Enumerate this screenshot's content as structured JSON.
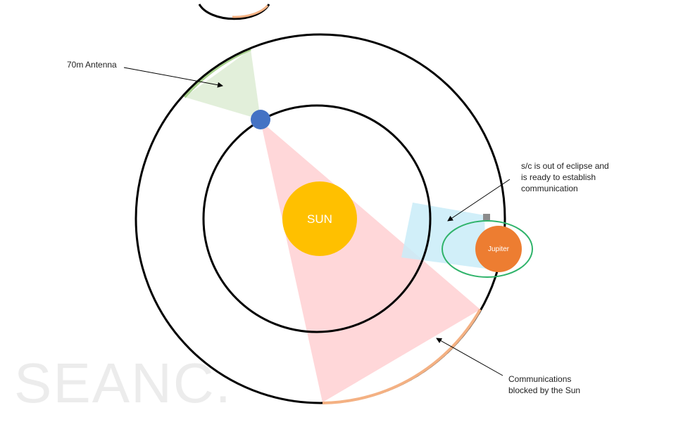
{
  "diagram": {
    "sun_label": "SUN",
    "planet_label": "Jupiter",
    "antenna_label": "70m Antenna",
    "spacecraft_note": {
      "line1": "s/c is out of eclipse and",
      "line2": "is   ready to establish",
      "line3": "communication"
    },
    "blocked_note": {
      "line1": "Communications",
      "line2": "blocked by the Sun"
    },
    "watermark": "SEANC."
  },
  "colors": {
    "sun": "#ffc000",
    "earth": "#4472c4",
    "jupiter": "#ed7d31",
    "orbit": "#000000",
    "antenna_beam": "#e2efda",
    "blocked_cone": "#ffd7d9",
    "spacecraft_beam": "#c9ecf8",
    "jupiter_orbit": "#2fb36a",
    "spacecraft": "#8c8c8c",
    "arc_accent": "#f4b183"
  }
}
